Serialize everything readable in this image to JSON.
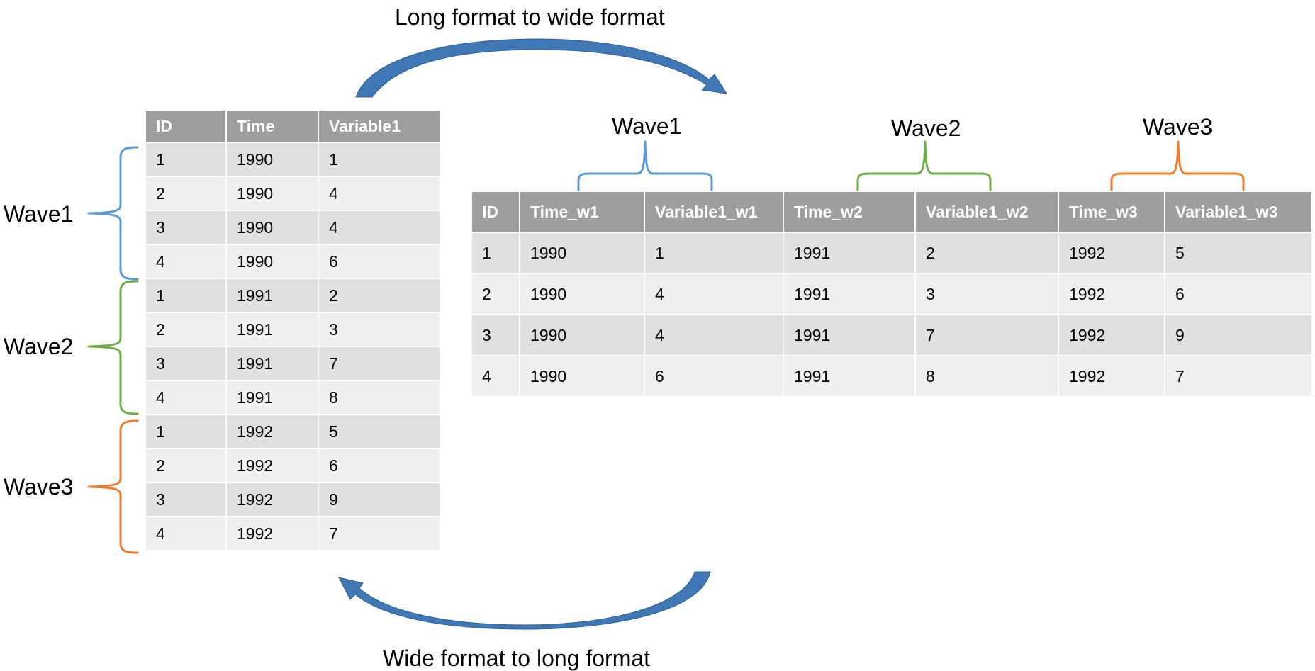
{
  "captions": {
    "top": "Long format to wide format",
    "bottom": "Wide format to long format"
  },
  "colors": {
    "wave1": "#5b9bd5",
    "wave2": "#70ad47",
    "wave3": "#ed7d31",
    "arrow": "#3f78b5",
    "header_bg": "#9e9e9e"
  },
  "long_table": {
    "headers": [
      "ID",
      "Time",
      "Variable1"
    ],
    "rows": [
      [
        "1",
        "1990",
        "1"
      ],
      [
        "2",
        "1990",
        "4"
      ],
      [
        "3",
        "1990",
        "4"
      ],
      [
        "4",
        "1990",
        "6"
      ],
      [
        "1",
        "1991",
        "2"
      ],
      [
        "2",
        "1991",
        "3"
      ],
      [
        "3",
        "1991",
        "7"
      ],
      [
        "4",
        "1991",
        "8"
      ],
      [
        "1",
        "1992",
        "5"
      ],
      [
        "2",
        "1992",
        "6"
      ],
      [
        "3",
        "1992",
        "9"
      ],
      [
        "4",
        "1992",
        "7"
      ]
    ],
    "wave_labels": [
      "Wave1",
      "Wave2",
      "Wave3"
    ]
  },
  "wide_table": {
    "wave_labels": [
      "Wave1",
      "Wave2",
      "Wave3"
    ],
    "headers": [
      "ID",
      "Time_w1",
      "Variable1_w1",
      "Time_w2",
      "Variable1_w2",
      "Time_w3",
      "Variable1_w3"
    ],
    "rows": [
      [
        "1",
        "1990",
        "1",
        "1991",
        "2",
        "1992",
        "5"
      ],
      [
        "2",
        "1990",
        "4",
        "1991",
        "3",
        "1992",
        "6"
      ],
      [
        "3",
        "1990",
        "4",
        "1991",
        "7",
        "1992",
        "9"
      ],
      [
        "4",
        "1990",
        "6",
        "1991",
        "8",
        "1992",
        "7"
      ]
    ]
  }
}
